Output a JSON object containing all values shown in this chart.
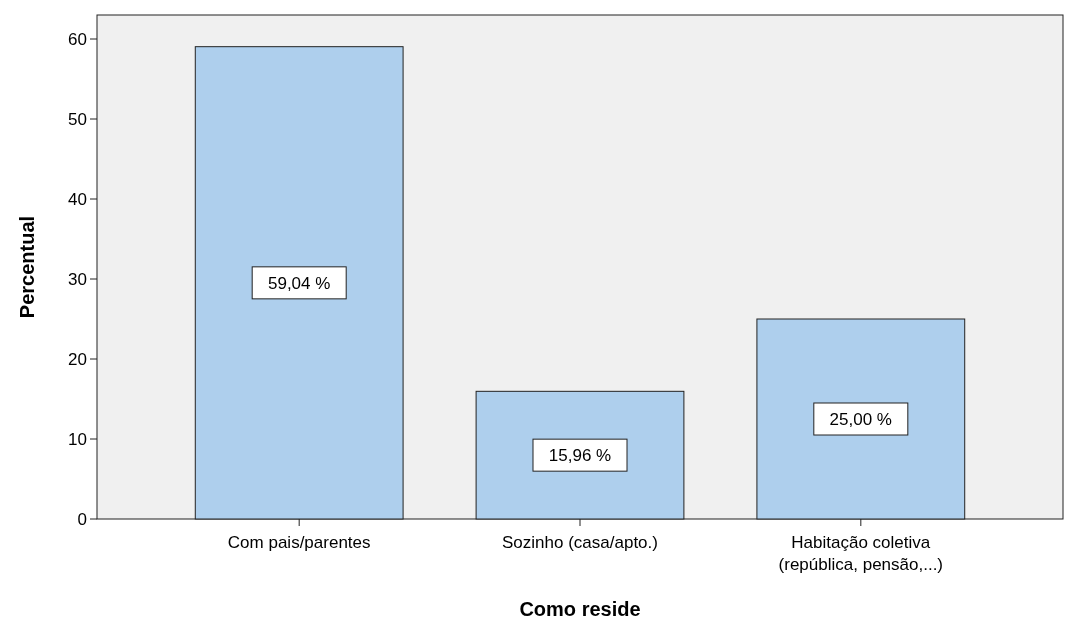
{
  "chart_data": {
    "type": "bar",
    "xlabel": "Como reside",
    "ylabel": "Percentual",
    "categories": [
      "Com pais/parentes",
      "Sozinho (casa/apto.)",
      "Habitação coletiva\n(república, pensão,...)"
    ],
    "values": [
      59.04,
      15.96,
      25.0
    ],
    "value_labels": [
      "59,04 %",
      "15,96 %",
      "25,00 %"
    ],
    "color": "#aecfed",
    "ylim": [
      0,
      63
    ],
    "yticks": [
      0,
      10,
      20,
      30,
      40,
      50,
      60
    ],
    "grid": false
  }
}
